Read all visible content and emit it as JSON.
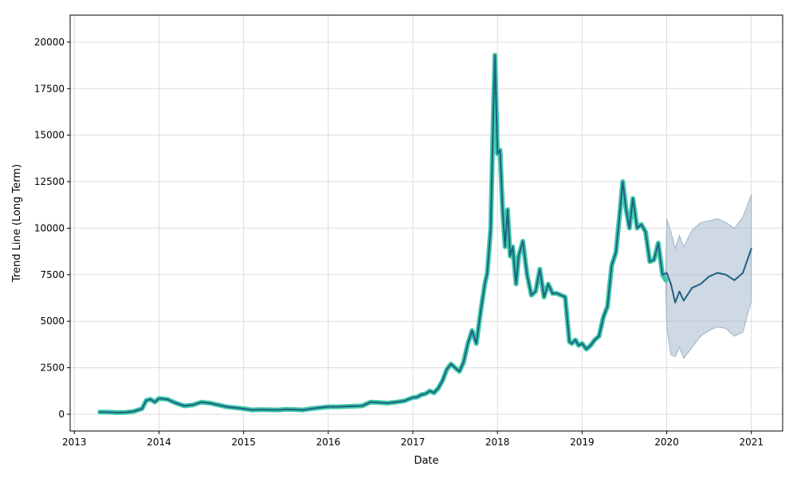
{
  "chart_data": {
    "type": "line",
    "xlabel": "Date",
    "ylabel": "Trend Line (Long Term)",
    "xlim": [
      2012.95,
      2021.37
    ],
    "ylim": [
      -900,
      21450
    ],
    "grid": true,
    "x_ticks": [
      2013,
      2014,
      2015,
      2016,
      2017,
      2018,
      2019,
      2020,
      2021
    ],
    "x_tick_labels": [
      "2013",
      "2014",
      "2015",
      "2016",
      "2017",
      "2018",
      "2019",
      "2020",
      "2021"
    ],
    "y_ticks": [
      0,
      2500,
      5000,
      7500,
      10000,
      12500,
      15000,
      17500,
      20000
    ],
    "y_tick_labels": [
      "0",
      "2500",
      "5000",
      "7500",
      "10000",
      "12500",
      "15000",
      "17500",
      "20000"
    ],
    "colors": {
      "actual": "#3ec9a7",
      "trend": "#1f5f85",
      "band": "#9db4c8"
    },
    "series": [
      {
        "role": "actual",
        "x": [
          2013.3,
          2013.4,
          2013.5,
          2013.6,
          2013.7,
          2013.8,
          2013.85,
          2013.9,
          2013.95,
          2014.0,
          2014.1,
          2014.2,
          2014.3,
          2014.4,
          2014.5,
          2014.6,
          2014.7,
          2014.8,
          2014.9,
          2015.0,
          2015.1,
          2015.2,
          2015.3,
          2015.4,
          2015.5,
          2015.6,
          2015.7,
          2015.8,
          2015.9,
          2016.0,
          2016.1,
          2016.2,
          2016.3,
          2016.4,
          2016.5,
          2016.6,
          2016.7,
          2016.8,
          2016.9,
          2017.0,
          2017.05,
          2017.1,
          2017.15,
          2017.2,
          2017.25,
          2017.3,
          2017.35,
          2017.4,
          2017.45,
          2017.5,
          2017.55,
          2017.6,
          2017.65,
          2017.7,
          2017.75,
          2017.8,
          2017.85,
          2017.88,
          2017.92,
          2017.95,
          2017.97,
          2018.0,
          2018.03,
          2018.06,
          2018.09,
          2018.12,
          2018.15,
          2018.18,
          2018.22,
          2018.25,
          2018.3,
          2018.35,
          2018.4,
          2018.45,
          2018.5,
          2018.55,
          2018.6,
          2018.65,
          2018.7,
          2018.75,
          2018.8,
          2018.85,
          2018.88,
          2018.92,
          2018.96,
          2019.0,
          2019.05,
          2019.1,
          2019.15,
          2019.2,
          2019.25,
          2019.3,
          2019.35,
          2019.4,
          2019.45,
          2019.48,
          2019.52,
          2019.56,
          2019.6,
          2019.65,
          2019.7,
          2019.75,
          2019.8,
          2019.85,
          2019.9,
          2019.95,
          2019.99
        ],
        "y": [
          120,
          110,
          90,
          100,
          150,
          300,
          750,
          800,
          650,
          850,
          800,
          600,
          450,
          500,
          650,
          600,
          500,
          400,
          350,
          300,
          230,
          250,
          240,
          230,
          260,
          250,
          230,
          300,
          350,
          400,
          400,
          420,
          430,
          450,
          650,
          630,
          600,
          650,
          720,
          900,
          920,
          1050,
          1100,
          1250,
          1150,
          1400,
          1800,
          2400,
          2700,
          2500,
          2300,
          2800,
          3800,
          4500,
          3800,
          5500,
          7000,
          7600,
          10000,
          16000,
          19300,
          14000,
          14200,
          11000,
          9000,
          11000,
          8500,
          9000,
          7000,
          8500,
          9300,
          7500,
          6400,
          6600,
          7800,
          6300,
          7000,
          6500,
          6500,
          6400,
          6300,
          3900,
          3800,
          4000,
          3700,
          3800,
          3500,
          3700,
          4000,
          4200,
          5200,
          5800,
          8000,
          8700,
          11000,
          12500,
          11000,
          10000,
          11600,
          10000,
          10200,
          9800,
          8200,
          8300,
          9200,
          7500,
          7200
        ]
      },
      {
        "role": "trend",
        "x": [
          2013.3,
          2013.4,
          2013.5,
          2013.6,
          2013.7,
          2013.8,
          2013.85,
          2013.9,
          2013.95,
          2014.0,
          2014.1,
          2014.2,
          2014.3,
          2014.4,
          2014.5,
          2014.6,
          2014.7,
          2014.8,
          2014.9,
          2015.0,
          2015.1,
          2015.2,
          2015.3,
          2015.4,
          2015.5,
          2015.6,
          2015.7,
          2015.8,
          2015.9,
          2016.0,
          2016.1,
          2016.2,
          2016.3,
          2016.4,
          2016.5,
          2016.6,
          2016.7,
          2016.8,
          2016.9,
          2017.0,
          2017.05,
          2017.1,
          2017.15,
          2017.2,
          2017.25,
          2017.3,
          2017.35,
          2017.4,
          2017.45,
          2017.5,
          2017.55,
          2017.6,
          2017.65,
          2017.7,
          2017.75,
          2017.8,
          2017.85,
          2017.88,
          2017.92,
          2017.95,
          2017.97,
          2018.0,
          2018.03,
          2018.06,
          2018.09,
          2018.12,
          2018.15,
          2018.18,
          2018.22,
          2018.25,
          2018.3,
          2018.35,
          2018.4,
          2018.45,
          2018.5,
          2018.55,
          2018.6,
          2018.65,
          2018.7,
          2018.75,
          2018.8,
          2018.85,
          2018.88,
          2018.92,
          2018.96,
          2019.0,
          2019.05,
          2019.1,
          2019.15,
          2019.2,
          2019.25,
          2019.3,
          2019.35,
          2019.4,
          2019.45,
          2019.48,
          2019.52,
          2019.56,
          2019.6,
          2019.65,
          2019.7,
          2019.75,
          2019.8,
          2019.85,
          2019.9,
          2019.95,
          2020.0,
          2020.05,
          2020.1,
          2020.15,
          2020.2,
          2020.3,
          2020.4,
          2020.5,
          2020.6,
          2020.7,
          2020.8,
          2020.9,
          2021.0
        ],
        "y": [
          120,
          110,
          90,
          100,
          150,
          300,
          750,
          800,
          650,
          850,
          800,
          600,
          450,
          500,
          650,
          600,
          500,
          400,
          350,
          300,
          230,
          250,
          240,
          230,
          260,
          250,
          230,
          300,
          350,
          400,
          400,
          420,
          430,
          450,
          650,
          630,
          600,
          650,
          720,
          900,
          920,
          1050,
          1100,
          1250,
          1150,
          1400,
          1800,
          2400,
          2700,
          2500,
          2300,
          2800,
          3800,
          4500,
          3800,
          5500,
          7000,
          7600,
          10000,
          16000,
          19300,
          14000,
          14200,
          11000,
          9000,
          11000,
          8500,
          9000,
          7000,
          8500,
          9300,
          7500,
          6400,
          6600,
          7800,
          6300,
          7000,
          6500,
          6500,
          6400,
          6300,
          3900,
          3800,
          4000,
          3700,
          3800,
          3500,
          3700,
          4000,
          4200,
          5200,
          5800,
          8000,
          8700,
          11000,
          12500,
          11000,
          10000,
          11600,
          10000,
          10200,
          9800,
          8200,
          8300,
          9200,
          7500,
          7600,
          7000,
          6000,
          6600,
          6100,
          6800,
          7000,
          7400,
          7600,
          7500,
          7200,
          7600,
          8900
        ]
      }
    ],
    "confidence_band": {
      "x": [
        2019.99,
        2020.0,
        2020.05,
        2020.1,
        2020.15,
        2020.2,
        2020.3,
        2020.4,
        2020.5,
        2020.6,
        2020.7,
        2020.8,
        2020.9,
        2021.0
      ],
      "upper": [
        7800,
        10500,
        9800,
        8900,
        9600,
        9000,
        9900,
        10300,
        10400,
        10500,
        10300,
        10000,
        10600,
        11800
      ],
      "lower": [
        6600,
        4700,
        3200,
        3100,
        3600,
        3000,
        3600,
        4200,
        4500,
        4700,
        4600,
        4200,
        4400,
        6100
      ]
    }
  }
}
